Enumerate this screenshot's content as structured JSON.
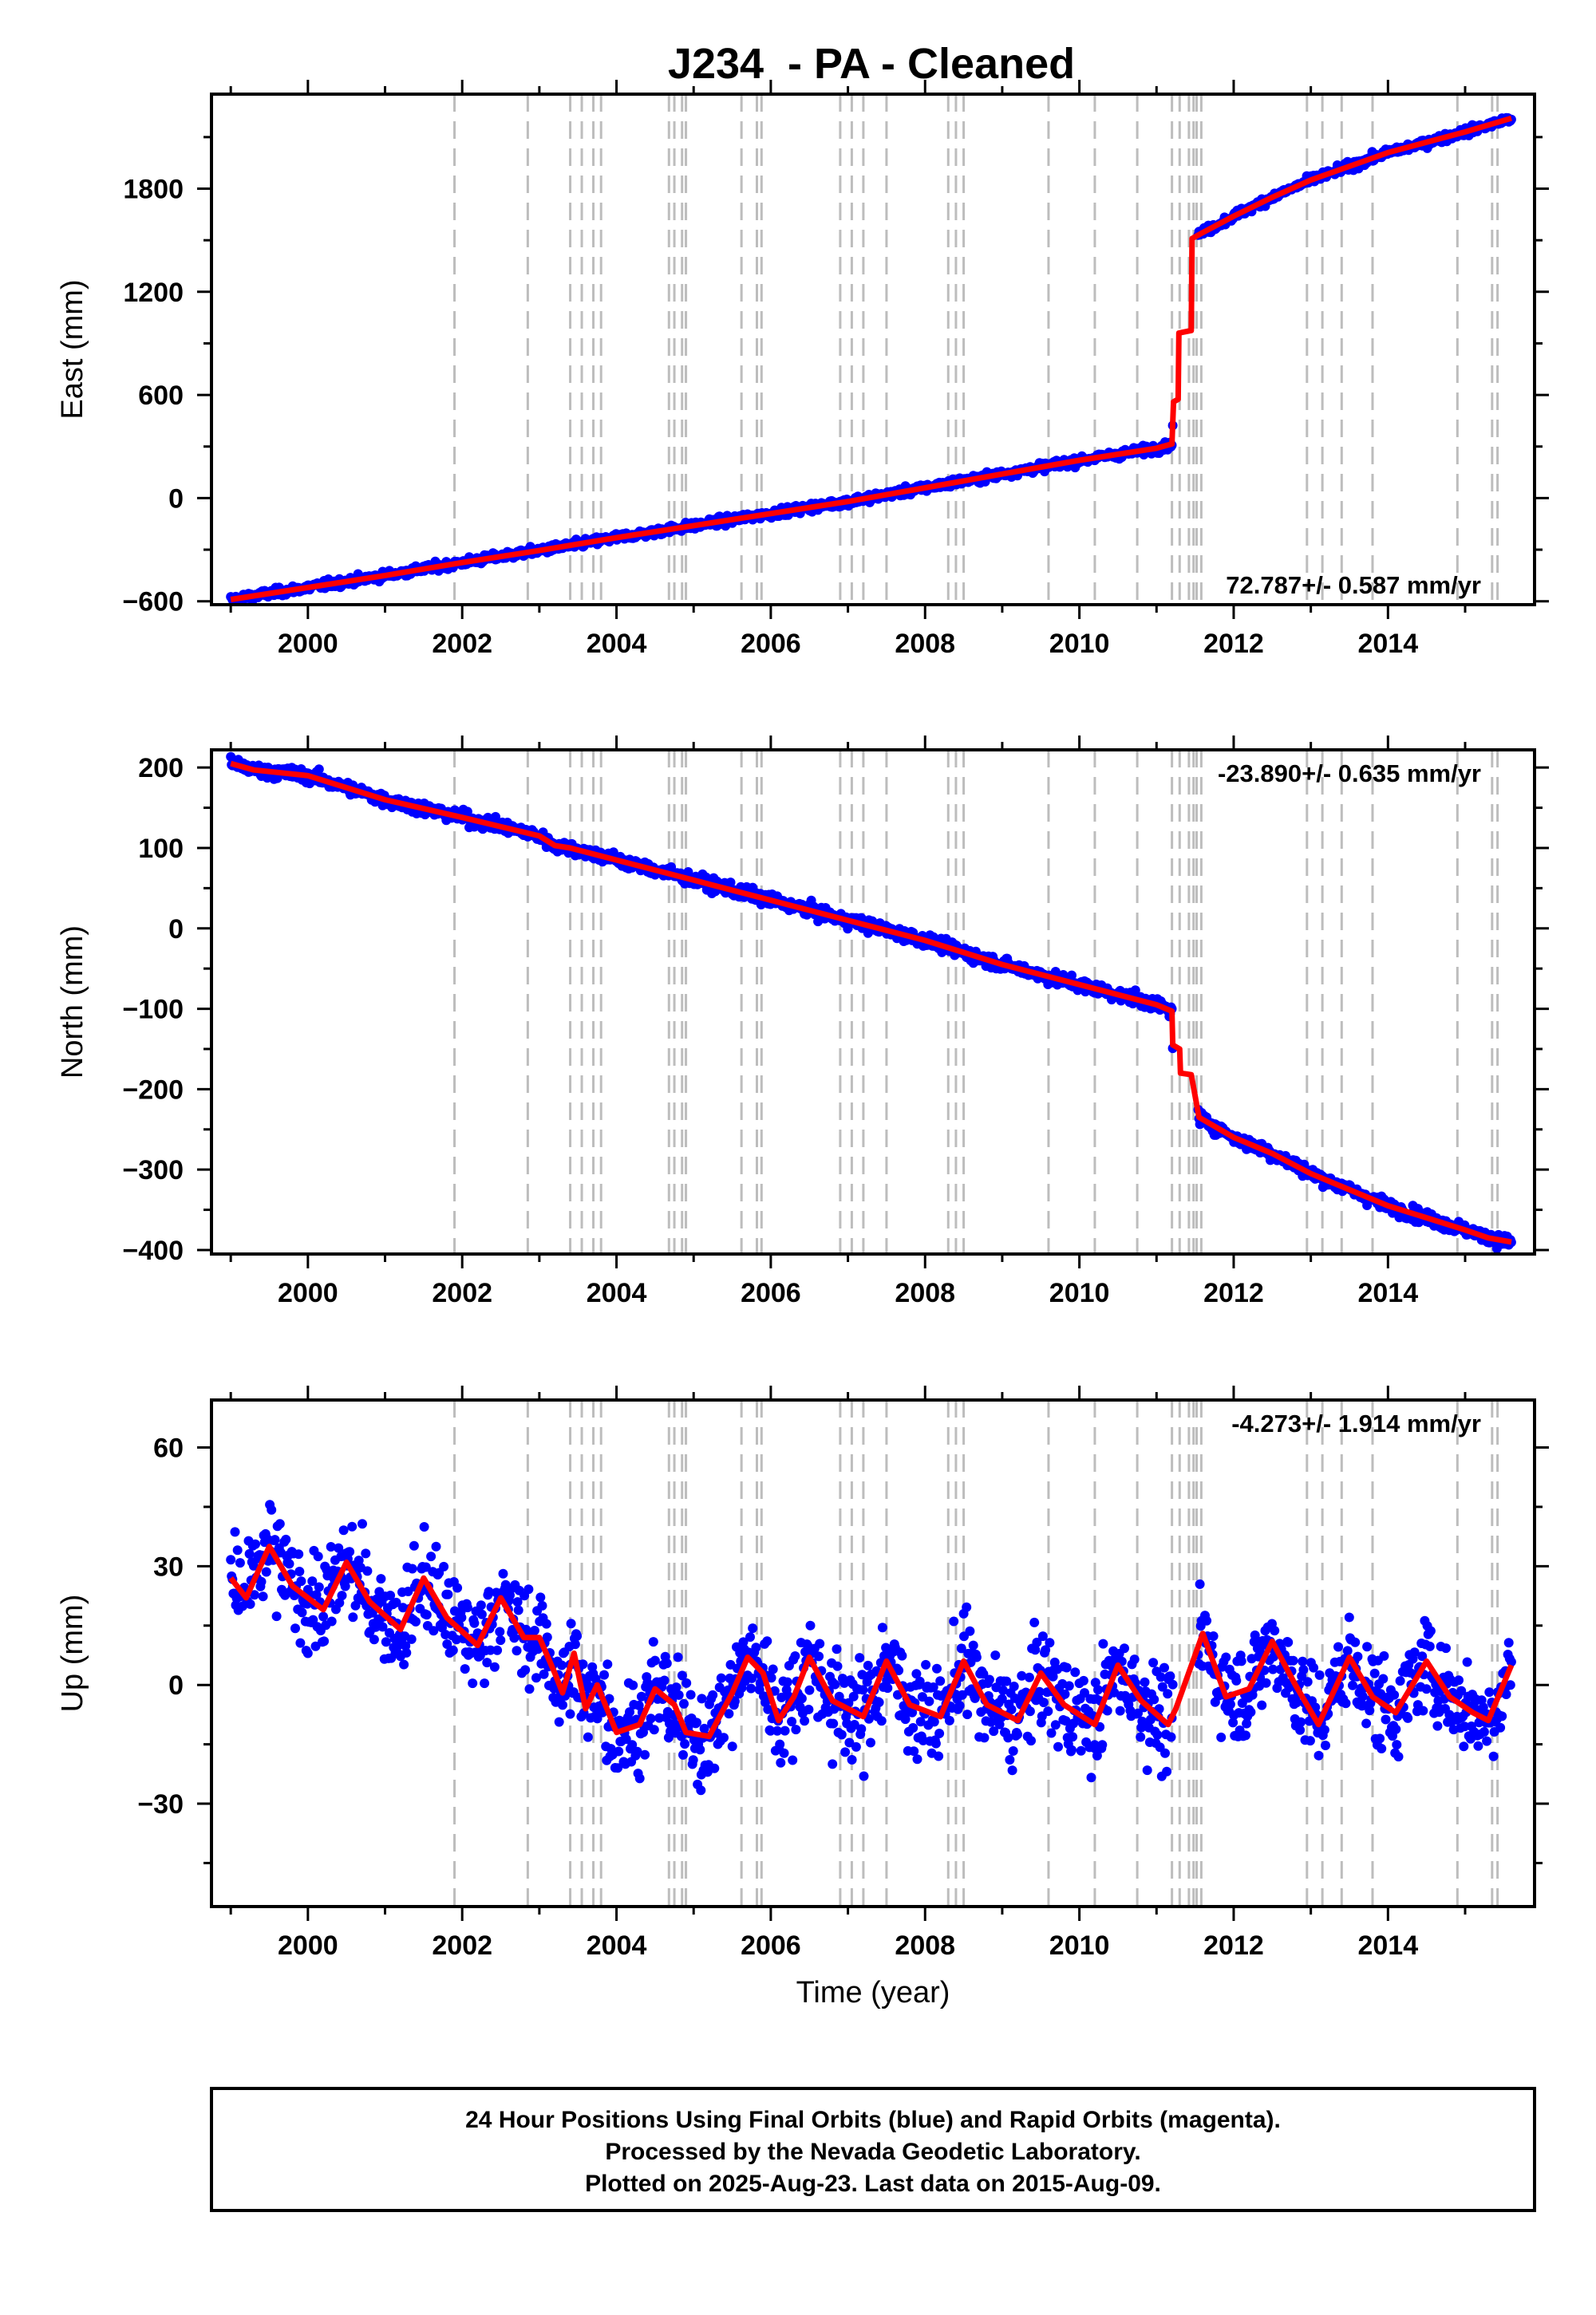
{
  "title": "J234  - PA - Cleaned",
  "colors": {
    "final": "#0000ff",
    "model": "#ff0000",
    "event_line": "#bdbdbd",
    "frame": "#000000"
  },
  "footer": {
    "line1": "24 Hour Positions Using Final Orbits (blue) and Rapid Orbits (magenta).",
    "line2": "Processed by the Nevada Geodetic Laboratory.",
    "line3": "Plotted on 2025-Aug-23. Last data on 2015-Aug-09."
  },
  "chart_data": {
    "type": "scatter",
    "x_axis": {
      "label": "Time (year)",
      "range": [
        1998.75,
        2015.9
      ],
      "ticks": [
        2000,
        2002,
        2004,
        2006,
        2008,
        2010,
        2012,
        2014
      ]
    },
    "event_lines": [
      2001.9,
      2002.85,
      2003.4,
      2003.55,
      2003.7,
      2003.8,
      2004.68,
      2004.75,
      2004.85,
      2004.9,
      2005.62,
      2005.82,
      2005.88,
      2006.9,
      2007.05,
      2007.2,
      2007.5,
      2008.3,
      2008.4,
      2008.5,
      2009.6,
      2010.2,
      2010.75,
      2011.2,
      2011.3,
      2011.42,
      2011.48,
      2011.52,
      2011.58,
      2012.95,
      2013.15,
      2013.4,
      2013.8,
      2014.9,
      2015.35,
      2015.42
    ],
    "panels": [
      {
        "name": "East",
        "ylabel": "East (mm)",
        "ylim": [
          -620,
          2350
        ],
        "yticks": [
          -600,
          0,
          600,
          1200,
          1800
        ],
        "rate": "72.787+/- 0.587 mm/yr",
        "rate_pos": "bottom-right",
        "model": [
          [
            1999.0,
            -590
          ],
          [
            2000.0,
            -520
          ],
          [
            2001.0,
            -450
          ],
          [
            2002.0,
            -375
          ],
          [
            2003.0,
            -305
          ],
          [
            2004.0,
            -230
          ],
          [
            2005.0,
            -160
          ],
          [
            2006.0,
            -90
          ],
          [
            2007.0,
            -20
          ],
          [
            2008.0,
            60
          ],
          [
            2009.0,
            140
          ],
          [
            2010.0,
            220
          ],
          [
            2011.0,
            290
          ],
          [
            2011.2,
            315
          ],
          [
            2011.22,
            560
          ],
          [
            2011.28,
            575
          ],
          [
            2011.29,
            960
          ],
          [
            2011.45,
            975
          ],
          [
            2011.46,
            1510
          ],
          [
            2011.6,
            1545
          ],
          [
            2012.0,
            1640
          ],
          [
            2012.5,
            1750
          ],
          [
            2013.0,
            1850
          ],
          [
            2013.5,
            1930
          ],
          [
            2014.0,
            2010
          ],
          [
            2014.5,
            2070
          ],
          [
            2015.0,
            2130
          ],
          [
            2015.6,
            2210
          ]
        ],
        "trend": [
          [
            1999.0,
            -595
          ],
          [
            2011.2,
            295
          ],
          [
            2011.55,
            1500
          ],
          [
            2015.6,
            2205
          ]
        ],
        "scatter": 12,
        "offsets": [
          -6,
          -6,
          -6,
          -10,
          -5,
          -8,
          -12,
          -8,
          -5
        ]
      },
      {
        "name": "North",
        "ylabel": "North (mm)",
        "ylim": [
          -405,
          222
        ],
        "yticks": [
          -400,
          -300,
          -200,
          -100,
          0,
          100,
          200
        ],
        "rate": "-23.890+/- 0.635 mm/yr",
        "rate_pos": "top-right",
        "model": [
          [
            1999.0,
            205
          ],
          [
            1999.3,
            197
          ],
          [
            2000.0,
            190
          ],
          [
            2001.0,
            160
          ],
          [
            2002.0,
            138
          ],
          [
            2003.0,
            115
          ],
          [
            2003.2,
            103
          ],
          [
            2003.4,
            100
          ],
          [
            2004.0,
            85
          ],
          [
            2005.0,
            60
          ],
          [
            2006.0,
            35
          ],
          [
            2007.0,
            10
          ],
          [
            2008.0,
            -15
          ],
          [
            2009.0,
            -45
          ],
          [
            2010.0,
            -70
          ],
          [
            2011.0,
            -95
          ],
          [
            2011.2,
            -103
          ],
          [
            2011.21,
            -145
          ],
          [
            2011.3,
            -150
          ],
          [
            2011.31,
            -180
          ],
          [
            2011.45,
            -182
          ],
          [
            2011.55,
            -235
          ],
          [
            2012.0,
            -260
          ],
          [
            2012.5,
            -280
          ],
          [
            2013.0,
            -305
          ],
          [
            2013.5,
            -325
          ],
          [
            2014.0,
            -345
          ],
          [
            2014.5,
            -360
          ],
          [
            2015.0,
            -375
          ],
          [
            2015.3,
            -385
          ],
          [
            2015.6,
            -390
          ]
        ],
        "trend": [
          [
            1999.0,
            200
          ],
          [
            2011.2,
            -100
          ],
          [
            2011.55,
            -235
          ],
          [
            2015.6,
            -388
          ]
        ],
        "scatter": 4,
        "offsets": [
          3,
          2,
          3,
          2,
          2,
          3,
          4,
          2,
          3
        ]
      },
      {
        "name": "Up",
        "ylabel": "Up (mm)",
        "ylim": [
          -56,
          72
        ],
        "yticks": [
          -30,
          0,
          30,
          60
        ],
        "rate": "-4.273+/- 1.914 mm/yr",
        "rate_pos": "top-right",
        "model": [
          [
            1999.0,
            27
          ],
          [
            1999.2,
            22
          ],
          [
            1999.5,
            35
          ],
          [
            1999.8,
            25
          ],
          [
            2000.2,
            19
          ],
          [
            2000.5,
            31
          ],
          [
            2000.8,
            21
          ],
          [
            2001.2,
            14
          ],
          [
            2001.5,
            27
          ],
          [
            2001.8,
            17
          ],
          [
            2002.2,
            10
          ],
          [
            2002.5,
            22
          ],
          [
            2002.8,
            12
          ],
          [
            2003.0,
            12
          ],
          [
            2003.2,
            3
          ],
          [
            2003.3,
            -2
          ],
          [
            2003.45,
            8
          ],
          [
            2003.6,
            -6
          ],
          [
            2003.75,
            0
          ],
          [
            2004.0,
            -12
          ],
          [
            2004.3,
            -10
          ],
          [
            2004.5,
            -1
          ],
          [
            2004.75,
            -5
          ],
          [
            2004.9,
            -12
          ],
          [
            2005.2,
            -13
          ],
          [
            2005.5,
            -2
          ],
          [
            2005.7,
            7
          ],
          [
            2005.9,
            3
          ],
          [
            2006.1,
            -9
          ],
          [
            2006.3,
            -3
          ],
          [
            2006.5,
            7
          ],
          [
            2006.8,
            -4
          ],
          [
            2007.2,
            -8
          ],
          [
            2007.5,
            6
          ],
          [
            2007.8,
            -5
          ],
          [
            2008.2,
            -8
          ],
          [
            2008.5,
            6
          ],
          [
            2008.8,
            -5
          ],
          [
            2009.2,
            -9
          ],
          [
            2009.5,
            3
          ],
          [
            2009.8,
            -5
          ],
          [
            2010.2,
            -10
          ],
          [
            2010.5,
            5
          ],
          [
            2010.8,
            -4
          ],
          [
            2011.15,
            -10
          ],
          [
            2011.25,
            -6
          ],
          [
            2011.6,
            13
          ],
          [
            2011.9,
            -3
          ],
          [
            2012.2,
            -1
          ],
          [
            2012.5,
            11
          ],
          [
            2012.8,
            0
          ],
          [
            2013.1,
            -10
          ],
          [
            2013.5,
            7
          ],
          [
            2013.8,
            -3
          ],
          [
            2014.1,
            -7
          ],
          [
            2014.5,
            6
          ],
          [
            2014.8,
            -3
          ],
          [
            2015.1,
            -7
          ],
          [
            2015.3,
            -9
          ],
          [
            2015.6,
            5
          ]
        ],
        "trend": [
          [
            1999.0,
            24
          ],
          [
            2003.1,
            12
          ],
          [
            2003.3,
            -3
          ],
          [
            2011.2,
            -7
          ],
          [
            2011.5,
            4
          ],
          [
            2015.6,
            -2
          ]
        ],
        "scatter": 6,
        "offsets": [
          -14,
          8,
          -12,
          -10,
          -16,
          12,
          -6,
          10,
          -8
        ]
      }
    ]
  }
}
